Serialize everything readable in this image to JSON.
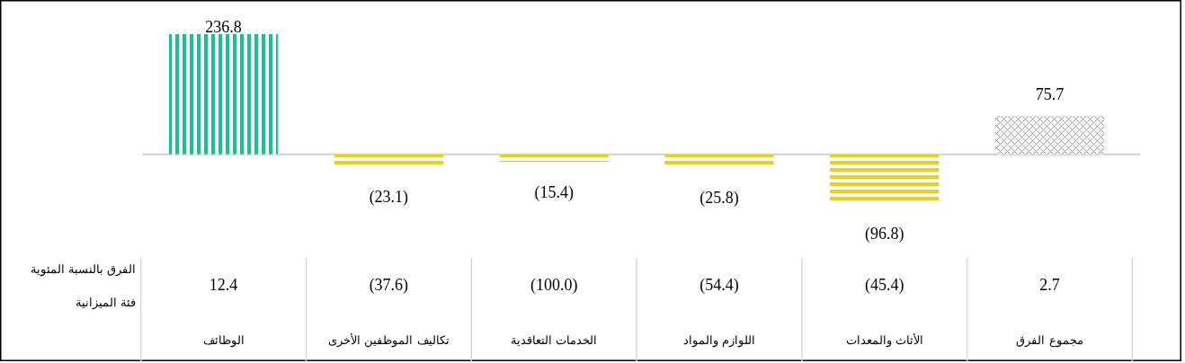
{
  "chart_data": {
    "type": "bar",
    "categories": [
      "الوظائف",
      "تكاليف الموظفين الأخرى",
      "الخدمات التعاقدية",
      "اللوازم والمواد",
      "الأثاث والمعدات",
      "مجموع الفرق"
    ],
    "values": [
      236.8,
      -23.1,
      -15.4,
      -25.8,
      -96.8,
      75.7
    ],
    "colors": [
      "#1dbd9a",
      "#e6d21e",
      "#e6d21e",
      "#e6d21e",
      "#e6d21e",
      "#9a9a9a"
    ],
    "value_labels": [
      "236.8",
      "(23.1)",
      "(15.4)",
      "(25.8)",
      "(96.8)",
      "75.7"
    ],
    "xlabel": "فئة الميزانية",
    "annotations": [
      "الفرق بالنسبة المئوية",
      "12.4",
      "(37.6)",
      "(100.0)",
      "(54.4)",
      "(45.4)",
      "2.7"
    ],
    "grid": false
  }
}
